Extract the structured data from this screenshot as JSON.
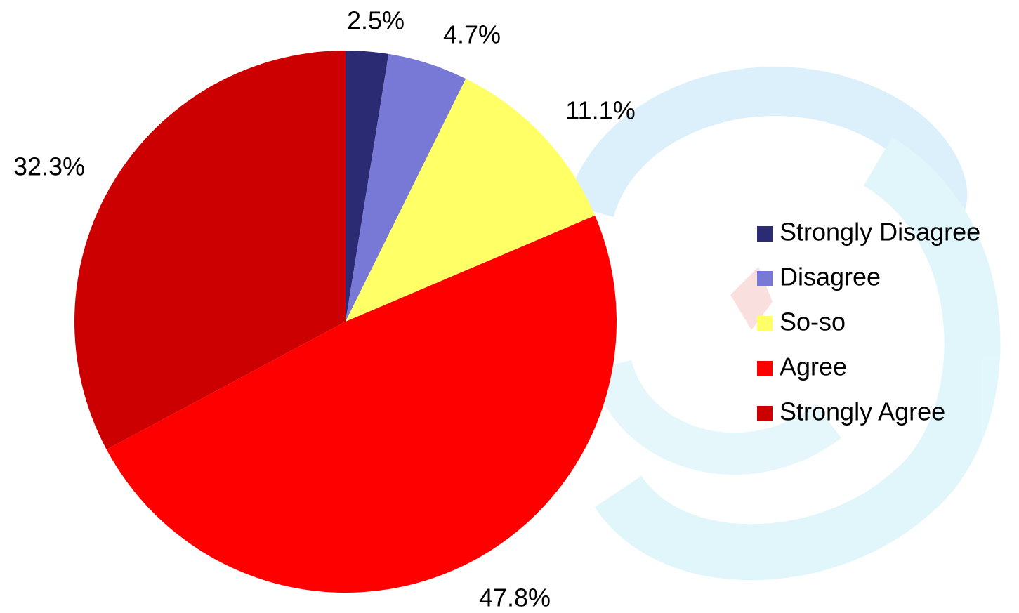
{
  "chart_data": {
    "type": "pie",
    "categories": [
      "Strongly Disagree",
      "Disagree",
      "So-so",
      "Agree",
      "Strongly Agree"
    ],
    "values": [
      2.5,
      4.7,
      11.1,
      47.8,
      32.3
    ],
    "value_labels": [
      "2.5%",
      "4.7%",
      "11.1%",
      "47.8%",
      "32.3%"
    ],
    "colors": [
      "#2b2b73",
      "#7878d6",
      "#ffff66",
      "#ff0000",
      "#cc0000"
    ],
    "legend": "right"
  }
}
